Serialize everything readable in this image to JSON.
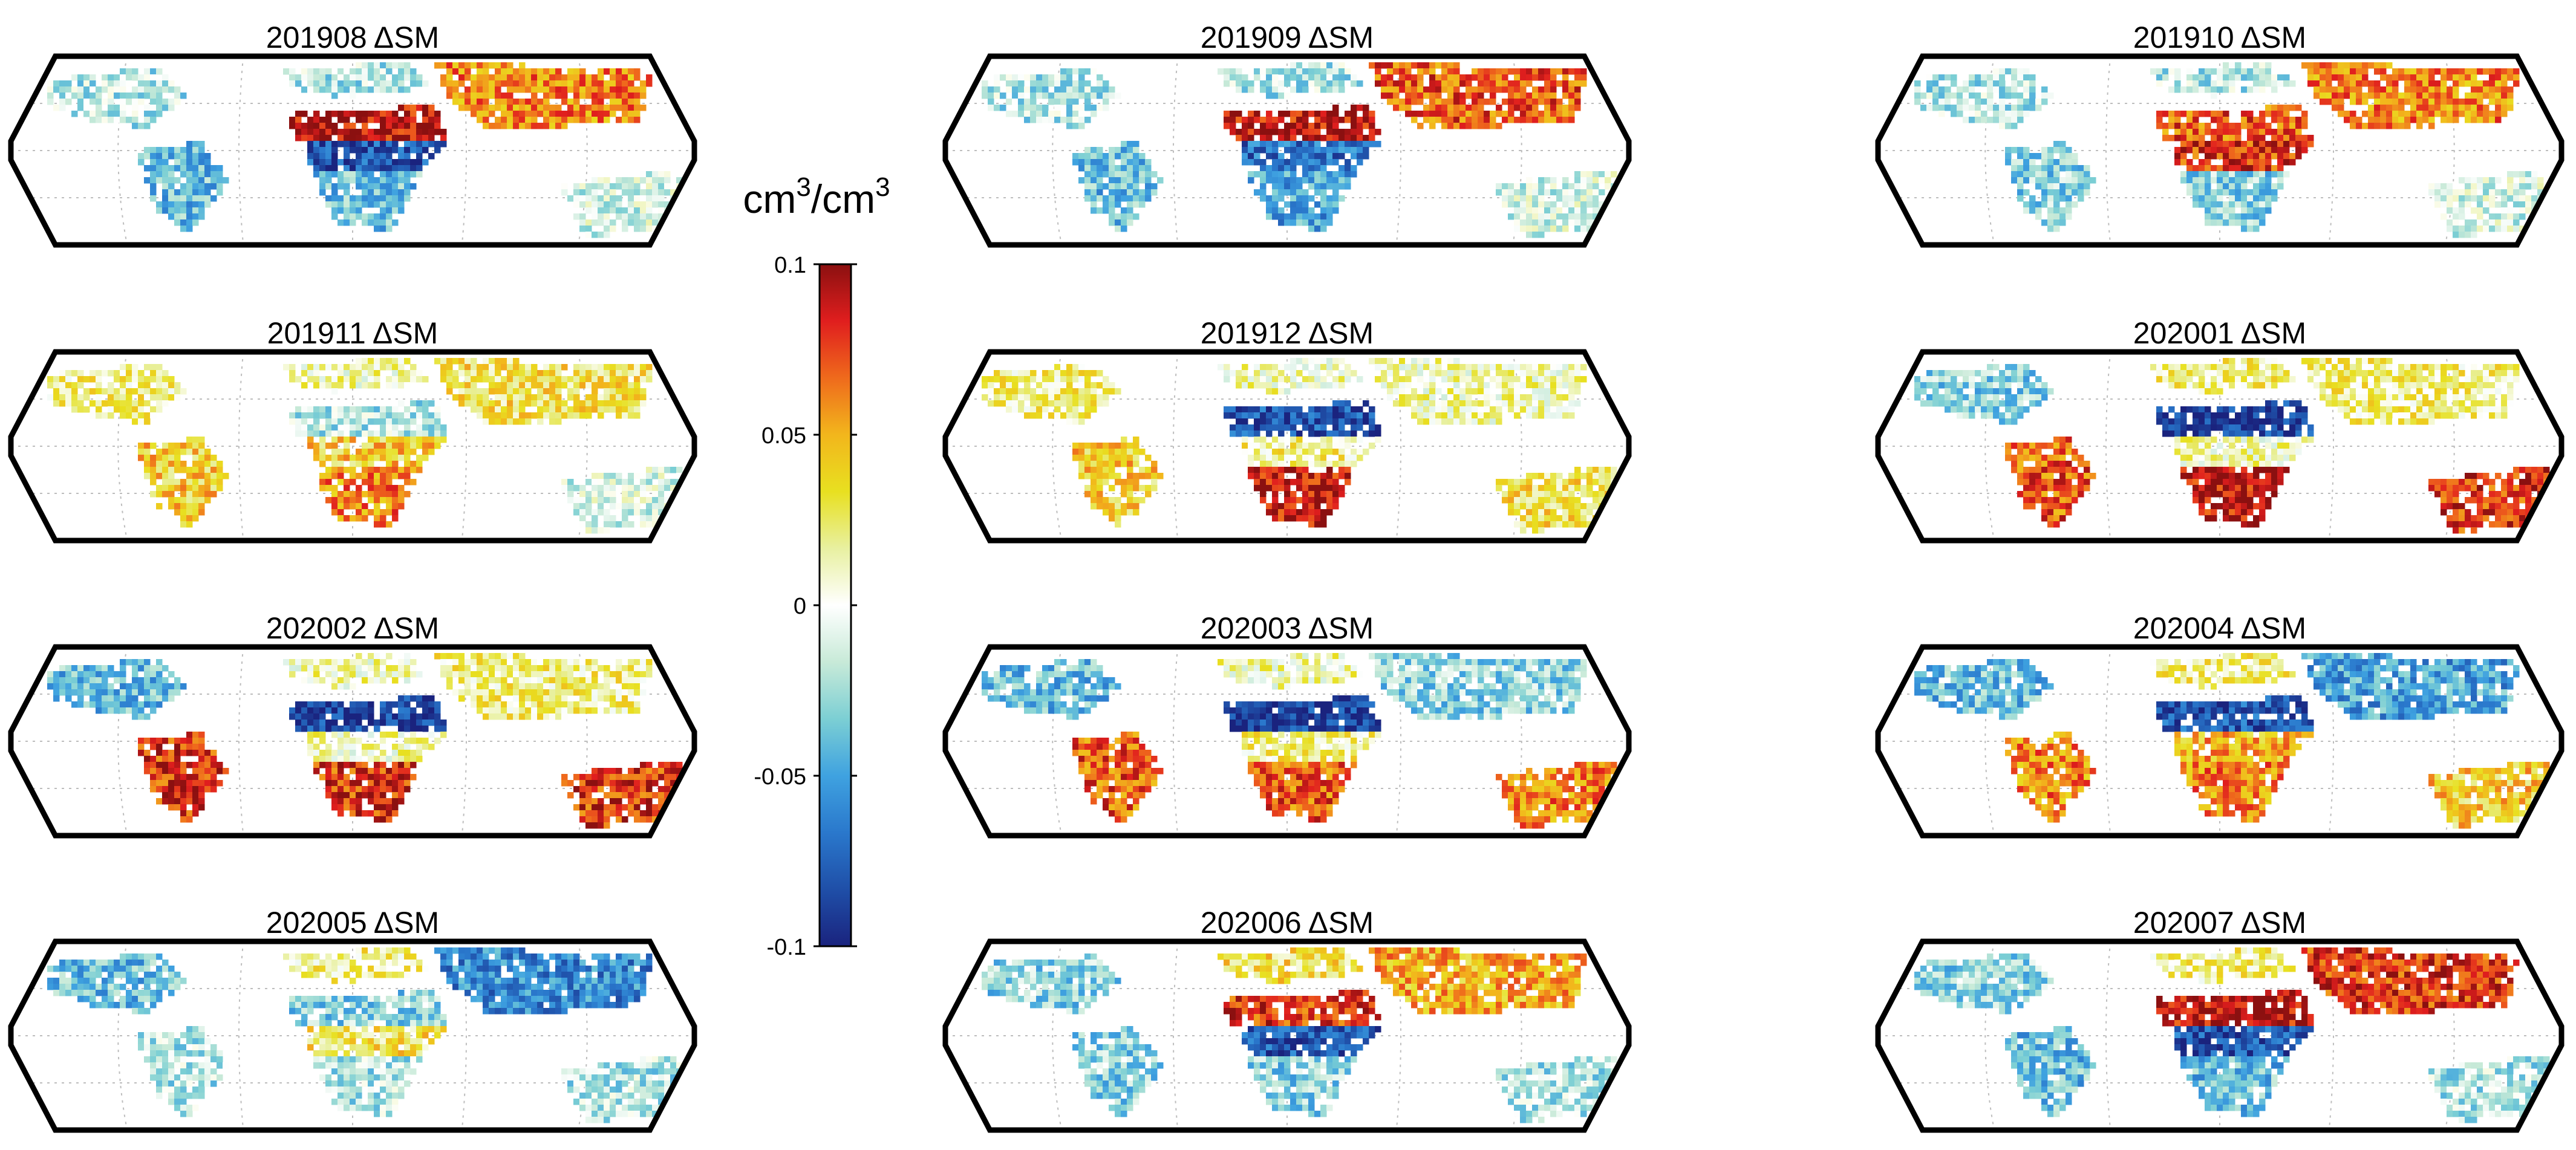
{
  "figure": {
    "panels": [
      {
        "date": "201908",
        "title": "201908 ΔSM",
        "pattern": {
          "sahel": 0.09,
          "central": -0.08,
          "southern": -0.04,
          "australia": -0.01,
          "sasia": 0.06,
          "namerica": -0.02,
          "samerica": -0.04,
          "europe": -0.02
        }
      },
      {
        "date": "201909",
        "title": "201909 ΔSM",
        "pattern": {
          "sahel": 0.09,
          "central": -0.07,
          "southern": -0.05,
          "australia": -0.01,
          "sasia": 0.07,
          "namerica": -0.02,
          "samerica": -0.04,
          "europe": -0.02
        }
      },
      {
        "date": "201910",
        "title": "201910 ΔSM",
        "pattern": {
          "sahel": 0.07,
          "central": 0.08,
          "southern": -0.03,
          "australia": -0.01,
          "sasia": 0.06,
          "namerica": -0.02,
          "samerica": -0.03,
          "europe": -0.02
        }
      },
      {
        "date": "201911",
        "title": "201911 ΔSM",
        "pattern": {
          "sahel": -0.02,
          "central": 0.04,
          "southern": 0.06,
          "australia": -0.01,
          "sasia": 0.03,
          "namerica": 0.02,
          "samerica": 0.04,
          "europe": 0.01
        }
      },
      {
        "date": "201912",
        "title": "201912 ΔSM",
        "pattern": {
          "sahel": -0.08,
          "central": 0.02,
          "southern": 0.09,
          "australia": 0.03,
          "sasia": 0.01,
          "namerica": 0.02,
          "samerica": 0.04,
          "europe": 0.01
        }
      },
      {
        "date": "202001",
        "title": "202001 ΔSM",
        "pattern": {
          "sahel": -0.09,
          "central": 0.01,
          "southern": 0.09,
          "australia": 0.08,
          "sasia": 0.02,
          "namerica": -0.03,
          "samerica": 0.07,
          "europe": 0.02
        }
      },
      {
        "date": "202002",
        "title": "202002 ΔSM",
        "pattern": {
          "sahel": -0.09,
          "central": 0.01,
          "southern": 0.08,
          "australia": 0.08,
          "sasia": 0.02,
          "namerica": -0.04,
          "samerica": 0.08,
          "europe": 0.01
        }
      },
      {
        "date": "202003",
        "title": "202003 ΔSM",
        "pattern": {
          "sahel": -0.09,
          "central": 0.02,
          "southern": 0.07,
          "australia": 0.06,
          "sasia": -0.03,
          "namerica": -0.04,
          "samerica": 0.07,
          "europe": 0.01
        }
      },
      {
        "date": "202004",
        "title": "202004 ΔSM",
        "pattern": {
          "sahel": -0.08,
          "central": 0.05,
          "southern": 0.06,
          "australia": 0.04,
          "sasia": -0.05,
          "namerica": -0.04,
          "samerica": 0.06,
          "europe": 0.02
        }
      },
      {
        "date": "202005",
        "title": "202005 ΔSM",
        "pattern": {
          "sahel": -0.03,
          "central": 0.03,
          "southern": -0.02,
          "australia": -0.02,
          "sasia": -0.06,
          "namerica": -0.04,
          "samerica": -0.02,
          "europe": 0.02
        }
      },
      {
        "date": "202006",
        "title": "202006 ΔSM",
        "pattern": {
          "sahel": 0.08,
          "central": -0.08,
          "southern": -0.03,
          "australia": -0.02,
          "sasia": 0.05,
          "namerica": -0.03,
          "samerica": -0.03,
          "europe": 0.03
        }
      },
      {
        "date": "202007",
        "title": "202007 ΔSM",
        "pattern": {
          "sahel": 0.09,
          "central": -0.08,
          "southern": -0.04,
          "australia": -0.02,
          "sasia": 0.08,
          "namerica": -0.03,
          "samerica": -0.04,
          "europe": 0.02
        }
      }
    ],
    "colorbar": {
      "unit_prefix": "cm",
      "unit_exp": "3",
      "unit_sep": "/cm",
      "unit_exp2": "3",
      "min": -0.1,
      "max": 0.1,
      "tick_values": [
        0.1,
        0.05,
        0,
        -0.05,
        -0.1
      ],
      "tick_labels": [
        "0.1",
        "0.05",
        "0",
        "-0.05",
        "-0.1"
      ],
      "colormap": [
        "#1a237e",
        "#1f4fa8",
        "#2a78cc",
        "#3fa2e0",
        "#7ccfd4",
        "#c8ead8",
        "#ffffff",
        "#e8f0a0",
        "#e8e020",
        "#f2b61c",
        "#ef6a1c",
        "#e01e1e",
        "#8b1010"
      ]
    },
    "colors": {
      "frame": "#000000",
      "gridline": "#bdbdbd"
    }
  }
}
